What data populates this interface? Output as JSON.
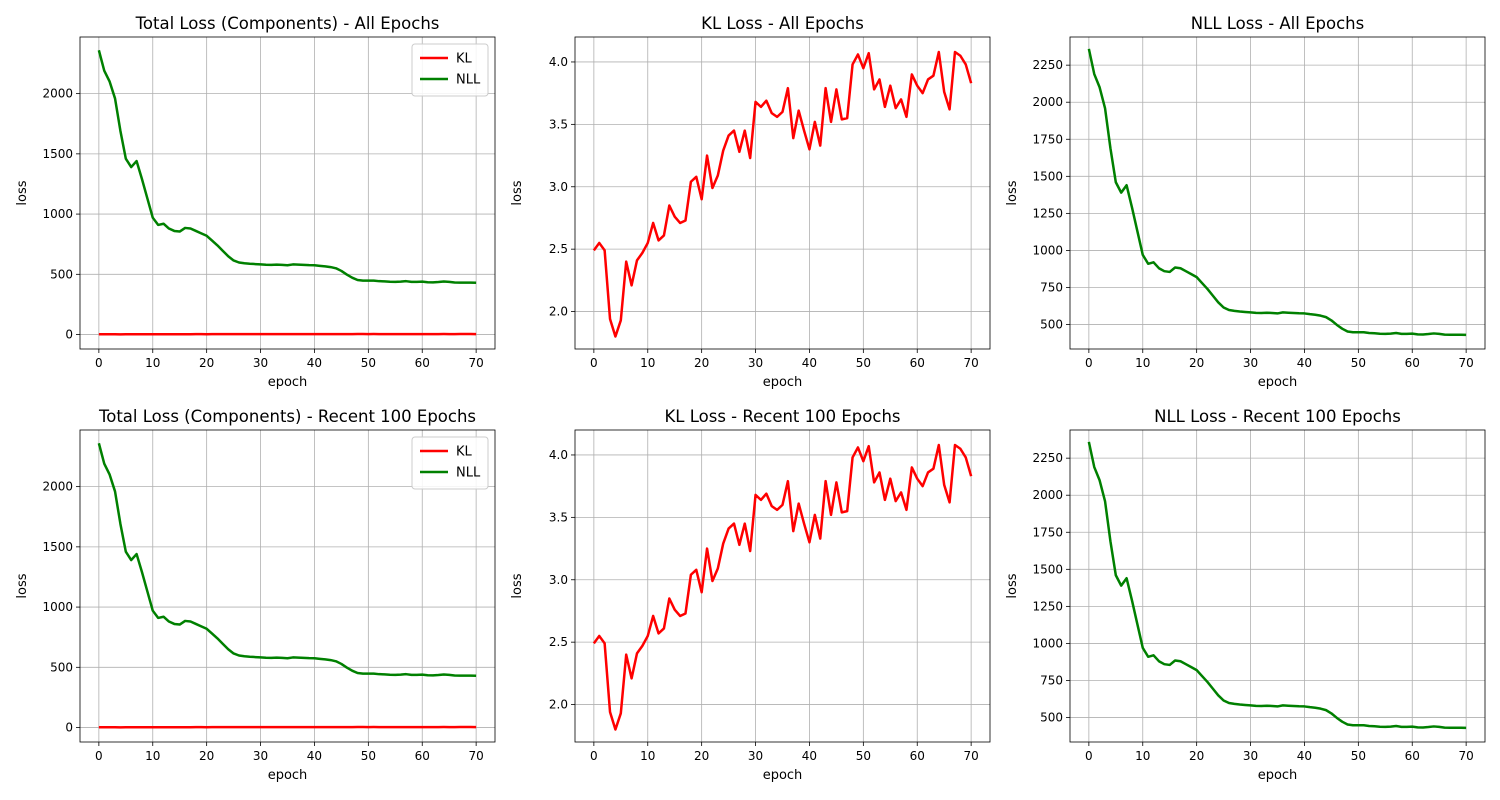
{
  "chart_data": [
    {
      "type": "line",
      "title": "Total Loss (Components) - All Epochs",
      "xlabel": "epoch",
      "ylabel": "loss",
      "xlim": [
        -3.5,
        73.5
      ],
      "ylim": [
        -120,
        2470
      ],
      "xticks": [
        0,
        10,
        20,
        30,
        40,
        50,
        60,
        70
      ],
      "yticks": [
        0,
        500,
        1000,
        1500,
        2000
      ],
      "grid": true,
      "legend": "top-right",
      "series": [
        {
          "name": "KL",
          "color": "#ff0000",
          "ref": "kl"
        },
        {
          "name": "NLL",
          "color": "#008000",
          "ref": "nll"
        }
      ]
    },
    {
      "type": "line",
      "title": "KL Loss - All Epochs",
      "xlabel": "epoch",
      "ylabel": "loss",
      "xlim": [
        -3.5,
        73.5
      ],
      "ylim": [
        1.7,
        4.2
      ],
      "xticks": [
        0,
        10,
        20,
        30,
        40,
        50,
        60,
        70
      ],
      "yticks": [
        2.0,
        2.5,
        3.0,
        3.5,
        4.0
      ],
      "ytick_format": 1,
      "grid": true,
      "series": [
        {
          "color": "#ff0000",
          "ref": "kl"
        }
      ]
    },
    {
      "type": "line",
      "title": "NLL Loss - All Epochs",
      "xlabel": "epoch",
      "ylabel": "loss",
      "xlim": [
        -3.5,
        73.5
      ],
      "ylim": [
        335,
        2440
      ],
      "xticks": [
        0,
        10,
        20,
        30,
        40,
        50,
        60,
        70
      ],
      "yticks": [
        500,
        750,
        1000,
        1250,
        1500,
        1750,
        2000,
        2250
      ],
      "grid": true,
      "series": [
        {
          "color": "#008000",
          "ref": "nll"
        }
      ]
    },
    {
      "type": "line",
      "title": "Total Loss (Components) - Recent 100 Epochs",
      "xlabel": "epoch",
      "ylabel": "loss",
      "xlim": [
        -3.5,
        73.5
      ],
      "ylim": [
        -120,
        2470
      ],
      "xticks": [
        0,
        10,
        20,
        30,
        40,
        50,
        60,
        70
      ],
      "yticks": [
        0,
        500,
        1000,
        1500,
        2000
      ],
      "grid": true,
      "legend": "top-right",
      "series": [
        {
          "name": "KL",
          "color": "#ff0000",
          "ref": "kl"
        },
        {
          "name": "NLL",
          "color": "#008000",
          "ref": "nll"
        }
      ]
    },
    {
      "type": "line",
      "title": "KL Loss - Recent 100 Epochs",
      "xlabel": "epoch",
      "ylabel": "loss",
      "xlim": [
        -3.5,
        73.5
      ],
      "ylim": [
        1.7,
        4.2
      ],
      "xticks": [
        0,
        10,
        20,
        30,
        40,
        50,
        60,
        70
      ],
      "yticks": [
        2.0,
        2.5,
        3.0,
        3.5,
        4.0
      ],
      "ytick_format": 1,
      "grid": true,
      "series": [
        {
          "color": "#ff0000",
          "ref": "kl"
        }
      ]
    },
    {
      "type": "line",
      "title": "NLL Loss - Recent 100 Epochs",
      "xlabel": "epoch",
      "ylabel": "loss",
      "xlim": [
        -3.5,
        73.5
      ],
      "ylim": [
        335,
        2440
      ],
      "xticks": [
        0,
        10,
        20,
        30,
        40,
        50,
        60,
        70
      ],
      "yticks": [
        500,
        750,
        1000,
        1250,
        1500,
        1750,
        2000,
        2250
      ],
      "grid": true,
      "series": [
        {
          "color": "#008000",
          "ref": "nll"
        }
      ]
    }
  ],
  "series_data": {
    "x": [
      0,
      1,
      2,
      3,
      4,
      5,
      6,
      7,
      8,
      9,
      10,
      11,
      12,
      13,
      14,
      15,
      16,
      17,
      18,
      19,
      20,
      21,
      22,
      23,
      24,
      25,
      26,
      27,
      28,
      29,
      30,
      31,
      32,
      33,
      34,
      35,
      36,
      37,
      38,
      39,
      40,
      41,
      42,
      43,
      44,
      45,
      46,
      47,
      48,
      49,
      50,
      51,
      52,
      53,
      54,
      55,
      56,
      57,
      58,
      59,
      60,
      61,
      62,
      63,
      64,
      65,
      66,
      67,
      68,
      69,
      70
    ],
    "kl": [
      2.49,
      2.55,
      2.49,
      1.94,
      1.8,
      1.93,
      2.4,
      2.21,
      2.41,
      2.47,
      2.55,
      2.71,
      2.57,
      2.61,
      2.85,
      2.76,
      2.71,
      2.73,
      3.04,
      3.08,
      2.9,
      3.25,
      2.99,
      3.09,
      3.29,
      3.41,
      3.45,
      3.28,
      3.45,
      3.23,
      3.68,
      3.64,
      3.69,
      3.59,
      3.56,
      3.6,
      3.79,
      3.39,
      3.61,
      3.45,
      3.3,
      3.52,
      3.33,
      3.79,
      3.52,
      3.78,
      3.54,
      3.55,
      3.98,
      4.06,
      3.95,
      4.07,
      3.78,
      3.86,
      3.64,
      3.81,
      3.63,
      3.7,
      3.56,
      3.9,
      3.81,
      3.75,
      3.86,
      3.89,
      4.08,
      3.76,
      3.62,
      4.08,
      4.05,
      3.98,
      3.83
    ],
    "nll": [
      2360,
      2190,
      2100,
      1960,
      1690,
      1460,
      1390,
      1440,
      1290,
      1130,
      970,
      910,
      920,
      880,
      860,
      855,
      885,
      880,
      860,
      840,
      820,
      780,
      740,
      695,
      650,
      615,
      598,
      592,
      588,
      585,
      582,
      579,
      578,
      580,
      578,
      575,
      582,
      580,
      578,
      576,
      575,
      570,
      566,
      560,
      550,
      528,
      498,
      472,
      453,
      448,
      448,
      448,
      443,
      441,
      438,
      437,
      439,
      443,
      437,
      437,
      439,
      434,
      433,
      436,
      440,
      437,
      432,
      431,
      431,
      431,
      430
    ]
  }
}
